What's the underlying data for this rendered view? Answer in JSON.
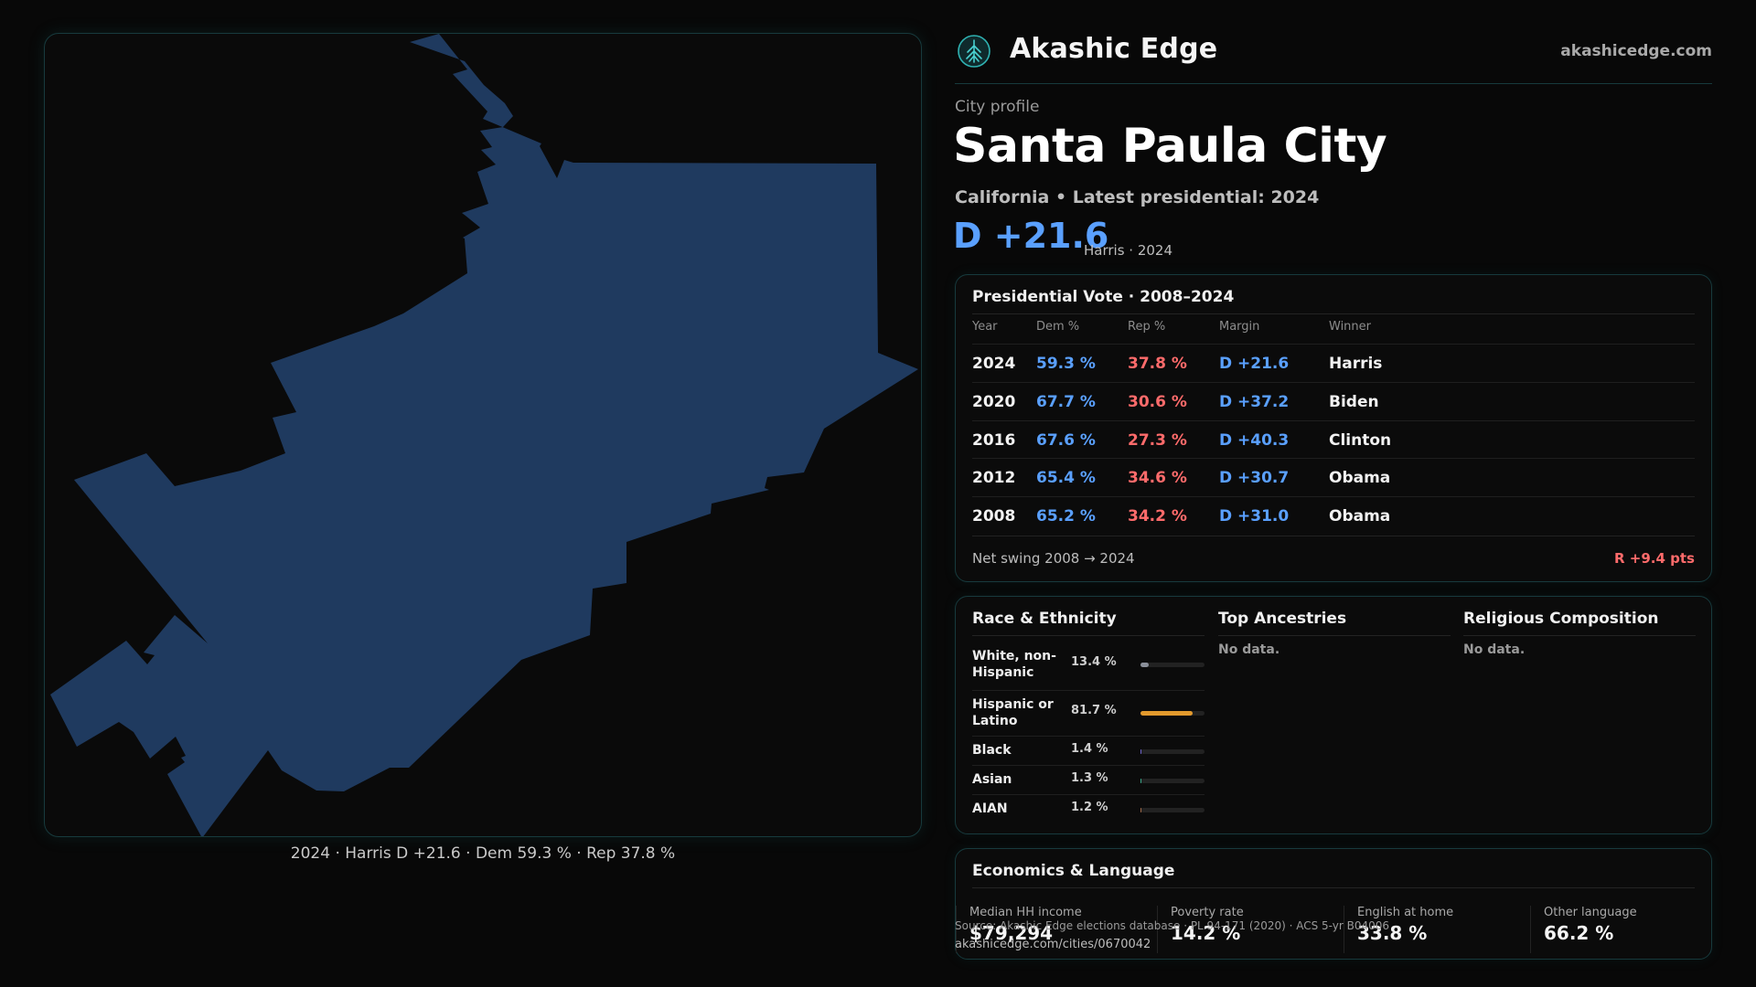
{
  "brand": {
    "name": "Akashic Edge",
    "url": "akashicedge.com",
    "logo_icon": "tree-circle-icon"
  },
  "page": {
    "subtitle": "City profile",
    "city": "Santa Paula City",
    "state_line": "California • Latest presidential: 2024",
    "margin_headline": "D +21.6",
    "margin_sub": "Harris · 2024"
  },
  "map": {
    "caption": "2024 · Harris D +21.6 · Dem 59.3 % · Rep 37.8 %",
    "fill_color": "#1f3a5f"
  },
  "vote": {
    "title": "Presidential Vote · 2008–2024",
    "headers": {
      "year": "Year",
      "dem": "Dem %",
      "rep": "Rep %",
      "margin": "Margin",
      "winner": "Winner"
    },
    "rows": [
      {
        "year": "2024",
        "dem": "59.3 %",
        "rep": "37.8 %",
        "margin": "D +21.6",
        "winner": "Harris"
      },
      {
        "year": "2020",
        "dem": "67.7 %",
        "rep": "30.6 %",
        "margin": "D +37.2",
        "winner": "Biden"
      },
      {
        "year": "2016",
        "dem": "67.6 %",
        "rep": "27.3 %",
        "margin": "D +40.3",
        "winner": "Clinton"
      },
      {
        "year": "2012",
        "dem": "65.4 %",
        "rep": "34.6 %",
        "margin": "D +30.7",
        "winner": "Obama"
      },
      {
        "year": "2008",
        "dem": "65.2 %",
        "rep": "34.2 %",
        "margin": "D +31.0",
        "winner": "Obama"
      }
    ],
    "swing_label": "Net swing 2008 → 2024",
    "swing_value": "R +9.4 pts"
  },
  "demographics": {
    "race_title": "Race & Ethnicity",
    "race": [
      {
        "label": "White, non-Hispanic",
        "pct": "13.4 %",
        "value": 13.4,
        "color": "#8a8f99"
      },
      {
        "label": "Hispanic or Latino",
        "pct": "81.7 %",
        "value": 81.7,
        "color": "#e39a2d"
      },
      {
        "label": "Black",
        "pct": "1.4 %",
        "value": 1.4,
        "color": "#6d63c9"
      },
      {
        "label": "Asian",
        "pct": "1.3 %",
        "value": 1.3,
        "color": "#3aa88a"
      },
      {
        "label": "AIAN",
        "pct": "1.2 %",
        "value": 1.2,
        "color": "#a06a4a"
      }
    ],
    "ancestries_title": "Top Ancestries",
    "ancestries_empty": "No data.",
    "religion_title": "Religious Composition",
    "religion_empty": "No data."
  },
  "economics": {
    "title": "Economics & Language",
    "items": [
      {
        "label": "Median HH income",
        "value": "$79,294"
      },
      {
        "label": "Poverty rate",
        "value": "14.2 %"
      },
      {
        "label": "English at home",
        "value": "33.8 %"
      },
      {
        "label": "Other language",
        "value": "66.2 %"
      }
    ]
  },
  "footer": {
    "source": "Source: Akashic Edge elections database · PL 94-171 (2020) · ACS 5-yr B04006",
    "url": "akashicedge.com/cities/0670042"
  }
}
